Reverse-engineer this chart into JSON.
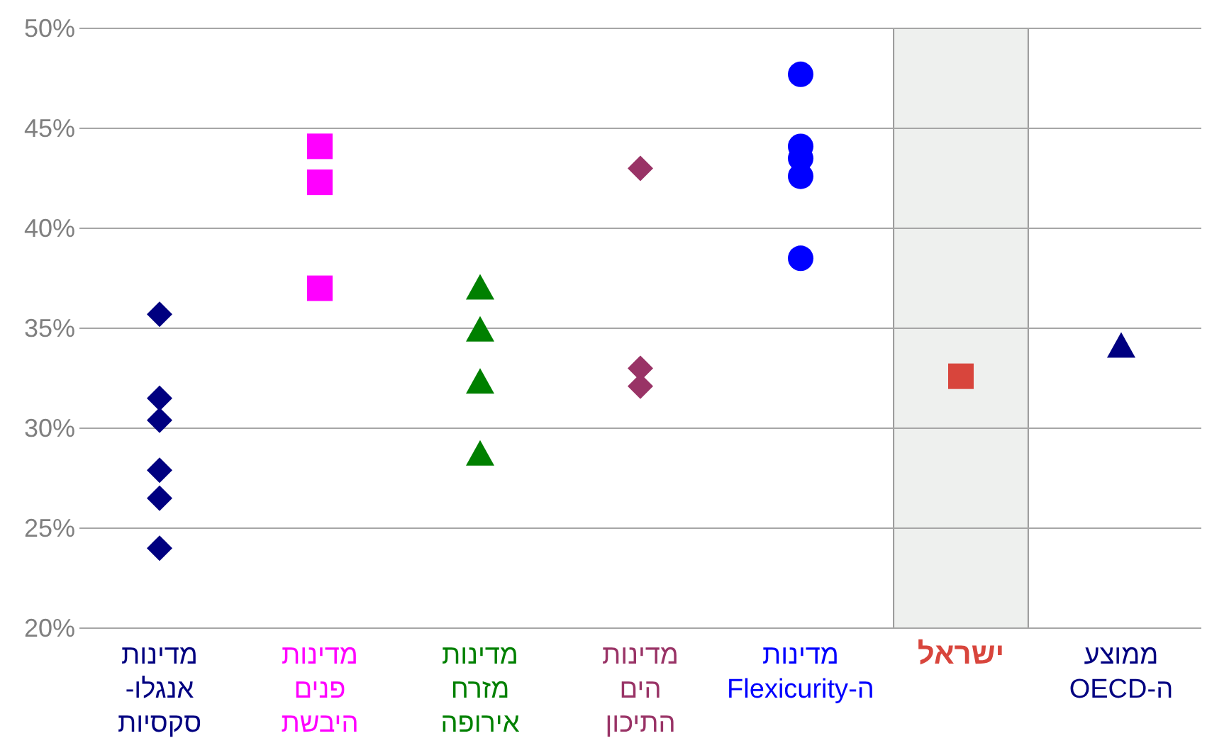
{
  "chart_data": {
    "type": "scatter",
    "categories": [
      "מדינות\nאנגלו-\nסקסיות",
      "מדינות\nפנים\nהיבשת",
      "מדינות\nמזרח\nאירופה",
      "מדינות\nהים\nהתיכון",
      "מדינות\nה-Flexicurity",
      "ישראל",
      "ממוצע\nה-OECD"
    ],
    "series": [
      {
        "x": [
          "מדינות\nאנגלו-\nסקסיות",
          "מדינות\nאנגלו-\nסקסיות",
          "מדינות\nאנגלו-\nסקסיות",
          "מדינות\nאנגלו-\nסקסיות",
          "מדינות\nאנגלו-\nסקסיות",
          "מדינות\nאנגלו-\nסקסיות"
        ],
        "values": [
          35.7,
          31.5,
          30.4,
          27.9,
          26.5,
          24.0
        ],
        "color": "#000080",
        "marker": "diamond"
      },
      {
        "x": [
          "מדינות\nפנים\nהיבשת",
          "מדינות\nפנים\nהיבשת",
          "מדינות\nפנים\nהיבשת"
        ],
        "values": [
          44.1,
          42.3,
          37.0
        ],
        "color": "#ff00ff",
        "marker": "square"
      },
      {
        "x": [
          "מדינות\nמזרח\nאירופה",
          "מדינות\nמזרח\nאירופה",
          "מדינות\nמזרח\nאירופה",
          "מדינות\nמזרח\nאירופה"
        ],
        "values": [
          37.0,
          34.9,
          32.3,
          28.7
        ],
        "color": "#008000",
        "marker": "triangle"
      },
      {
        "x": [
          "מדינות\nהים\nהתיכון",
          "מדינות\nהים\nהתיכון",
          "מדינות\nהים\nהתיכון"
        ],
        "values": [
          43.0,
          33.0,
          32.1
        ],
        "color": "#993366",
        "marker": "diamond"
      },
      {
        "x": [
          "מדינות\nה-Flexicurity",
          "מדינות\nה-Flexicurity",
          "מדינות\nה-Flexicurity",
          "מדינות\nה-Flexicurity",
          "מדינות\nה-Flexicurity"
        ],
        "values": [
          47.7,
          44.1,
          43.5,
          42.6,
          38.5
        ],
        "color": "#0000ff",
        "marker": "circle"
      },
      {
        "x": [
          "ישראל"
        ],
        "values": [
          32.6
        ],
        "color": "#d8453c",
        "marker": "square"
      },
      {
        "x": [
          "ממוצע\nה-OECD"
        ],
        "values": [
          34.1
        ],
        "color": "#000080",
        "marker": "triangle"
      }
    ],
    "bands": [
      {
        "axis": "x",
        "from": "ישראל",
        "to": "ישראל",
        "color": "#eef0ee"
      }
    ],
    "ylim": [
      20,
      50
    ],
    "yticks": [
      {
        "value": 20,
        "label": "20%"
      },
      {
        "value": 25,
        "label": "25%"
      },
      {
        "value": 30,
        "label": "30%"
      },
      {
        "value": 35,
        "label": "35%"
      },
      {
        "value": 40,
        "label": "40%"
      },
      {
        "value": 45,
        "label": "45%"
      },
      {
        "value": 50,
        "label": "50%"
      }
    ],
    "grid": "y"
  }
}
